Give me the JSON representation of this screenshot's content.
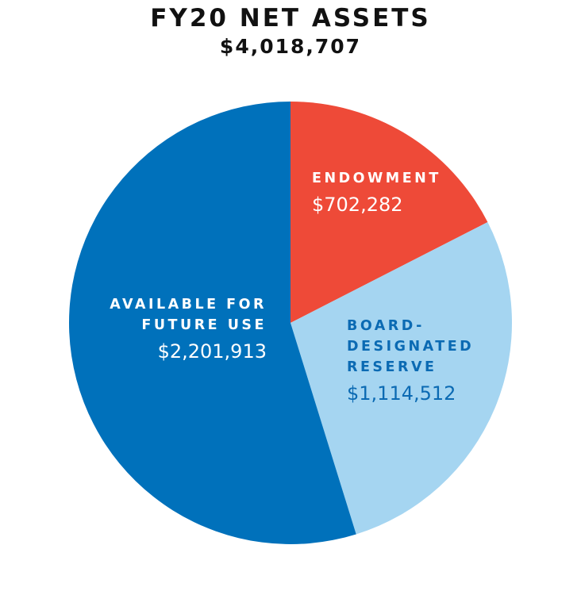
{
  "chart_data": {
    "type": "pie",
    "title": "FY20 NET ASSETS",
    "subtitle": "$4,018,707",
    "slices": [
      {
        "name_lines": [
          "ENDOWMENT"
        ],
        "value": 702282,
        "value_label": "$702,282",
        "color": "#ee4a38",
        "text_color": "#ffffff"
      },
      {
        "name_lines": [
          "BOARD-",
          "DESIGNATED",
          "RESERVE"
        ],
        "value": 1114512,
        "value_label": "$1,114,512",
        "color": "#a5d5f1",
        "text_color": "#0b6ab3"
      },
      {
        "name_lines": [
          "AVAILABLE FOR",
          "FUTURE USE"
        ],
        "value": 2201913,
        "value_label": "$2,201,913",
        "color": "#0071bb",
        "text_color": "#ffffff"
      }
    ],
    "start_angle_deg": 0,
    "direction": "clockwise",
    "legend": "none"
  }
}
